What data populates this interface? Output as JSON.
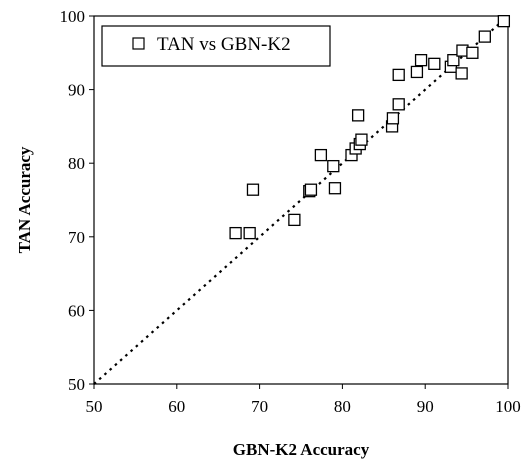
{
  "chart_data": {
    "type": "scatter",
    "xlabel": "GBN-K2 Accuracy",
    "ylabel": "TAN Accuracy",
    "xlim": [
      50,
      100
    ],
    "ylim": [
      50,
      100
    ],
    "xticks": [
      "50",
      "60",
      "70",
      "80",
      "90",
      "100"
    ],
    "yticks": [
      "50",
      "60",
      "70",
      "80",
      "90",
      "100"
    ],
    "grid": false,
    "legend_position": "top-left",
    "marker": "open-square",
    "reference_line": {
      "style": "dotted",
      "from": [
        50,
        50
      ],
      "to": [
        100,
        100
      ]
    },
    "series": [
      {
        "name": "TAN vs GBN-K2",
        "points": [
          {
            "x": 67.1,
            "y": 70.5
          },
          {
            "x": 68.8,
            "y": 70.5
          },
          {
            "x": 69.2,
            "y": 76.4
          },
          {
            "x": 74.2,
            "y": 72.3
          },
          {
            "x": 76.0,
            "y": 76.2
          },
          {
            "x": 76.2,
            "y": 76.4
          },
          {
            "x": 77.4,
            "y": 81.1
          },
          {
            "x": 78.9,
            "y": 79.6
          },
          {
            "x": 79.1,
            "y": 76.6
          },
          {
            "x": 81.1,
            "y": 81.1
          },
          {
            "x": 81.6,
            "y": 82.0
          },
          {
            "x": 81.9,
            "y": 86.5
          },
          {
            "x": 82.1,
            "y": 82.6
          },
          {
            "x": 82.3,
            "y": 83.2
          },
          {
            "x": 86.0,
            "y": 85.0
          },
          {
            "x": 86.1,
            "y": 86.1
          },
          {
            "x": 86.8,
            "y": 92.0
          },
          {
            "x": 86.8,
            "y": 88.0
          },
          {
            "x": 89.0,
            "y": 92.4
          },
          {
            "x": 89.5,
            "y": 94.0
          },
          {
            "x": 91.1,
            "y": 93.5
          },
          {
            "x": 93.1,
            "y": 93.1
          },
          {
            "x": 93.4,
            "y": 94.0
          },
          {
            "x": 94.4,
            "y": 92.2
          },
          {
            "x": 94.5,
            "y": 95.3
          },
          {
            "x": 95.7,
            "y": 95.0
          },
          {
            "x": 97.2,
            "y": 97.2
          },
          {
            "x": 99.5,
            "y": 99.3
          }
        ]
      }
    ]
  }
}
